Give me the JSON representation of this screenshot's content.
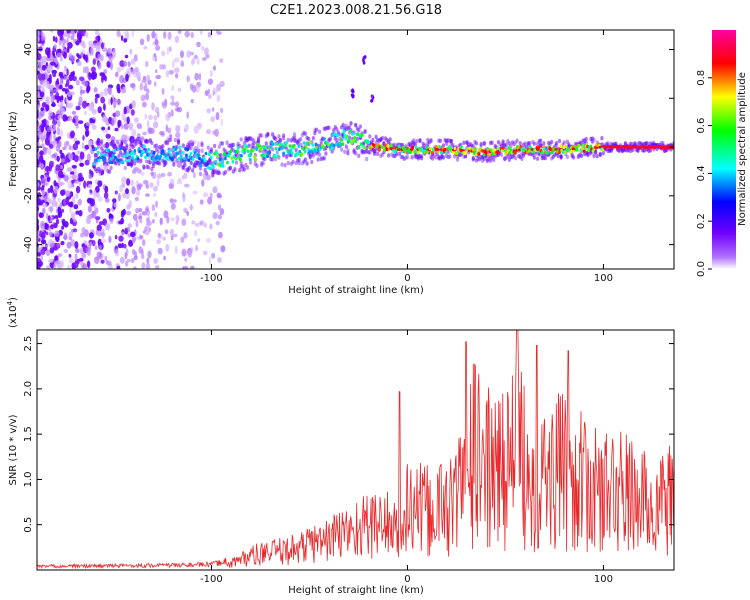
{
  "title": "C2E1.2023.008.21.56.G18",
  "chart_data": [
    {
      "type": "heatmap",
      "xlabel": "Height of straight line (km)",
      "ylabel": "Frequency (Hz)",
      "xlim": [
        -189,
        136
      ],
      "ylim": [
        -50,
        48
      ],
      "xticks": [
        -100,
        0,
        100
      ],
      "xtick_labels": [
        "-100",
        "0",
        "100"
      ],
      "yticks": [
        -40,
        -20,
        0,
        20,
        40
      ],
      "ytick_labels": [
        "-40",
        "-20",
        "0",
        "20",
        "40"
      ],
      "grid": false,
      "colorbar": {
        "label": "Normalized spectral amplitude",
        "range": [
          0,
          1
        ],
        "ticks": [
          0.0,
          0.2,
          0.4,
          0.6,
          0.8
        ],
        "tick_labels": [
          "0.0",
          "0.2",
          "0.4",
          "0.6",
          "0.8"
        ],
        "colormap": [
          "#ffffff",
          "#7000ff",
          "#0000ff",
          "#00ffff",
          "#00ff00",
          "#ffff00",
          "#ff0000",
          "#ff00a0"
        ]
      },
      "signal_track": [
        {
          "x": -158,
          "f": -4
        },
        {
          "x": -140,
          "f": -3
        },
        {
          "x": -120,
          "f": -2
        },
        {
          "x": -100,
          "f": -6
        },
        {
          "x": -85,
          "f": -3
        },
        {
          "x": -70,
          "f": -1
        },
        {
          "x": -55,
          "f": -1
        },
        {
          "x": -40,
          "f": 2
        },
        {
          "x": -30,
          "f": 4
        },
        {
          "x": -20,
          "f": 1
        },
        {
          "x": -5,
          "f": -1
        },
        {
          "x": 20,
          "f": -1
        },
        {
          "x": 40,
          "f": -2
        },
        {
          "x": 60,
          "f": -1
        },
        {
          "x": 80,
          "f": -1
        },
        {
          "x": 100,
          "f": 0
        },
        {
          "x": 136,
          "f": 0
        }
      ]
    },
    {
      "type": "line",
      "xlabel": "Height of straight line (km)",
      "ylabel": "SNR (10 * v/v)",
      "y_multiplier": "(x10",
      "y_multiplier_exp": "4",
      "y_multiplier_close": ")",
      "xlim": [
        -189,
        136
      ],
      "ylim": [
        0,
        2.65
      ],
      "xticks": [
        -100,
        0,
        100
      ],
      "xtick_labels": [
        "-100",
        "0",
        "100"
      ],
      "yticks": [
        0.5,
        1.0,
        1.5,
        2.0,
        2.5
      ],
      "ytick_labels": [
        "0.5",
        "1.0",
        "1.5",
        "2.0",
        "2.5"
      ],
      "grid": false,
      "color": "#e8282a",
      "envelope": [
        {
          "x": -189,
          "y": 0.04
        },
        {
          "x": -130,
          "y": 0.05
        },
        {
          "x": -100,
          "y": 0.06
        },
        {
          "x": -92,
          "y": 0.1
        },
        {
          "x": -80,
          "y": 0.25
        },
        {
          "x": -60,
          "y": 0.35
        },
        {
          "x": -40,
          "y": 0.55
        },
        {
          "x": -25,
          "y": 0.75
        },
        {
          "x": -10,
          "y": 0.85
        },
        {
          "x": -3,
          "y": 0.5
        },
        {
          "x": 0,
          "y": 1.2
        },
        {
          "x": 10,
          "y": 1.1
        },
        {
          "x": 25,
          "y": 1.3
        },
        {
          "x": 32,
          "y": 2.3
        },
        {
          "x": 45,
          "y": 1.8
        },
        {
          "x": 56,
          "y": 2.4
        },
        {
          "x": 65,
          "y": 1.7
        },
        {
          "x": 80,
          "y": 1.9
        },
        {
          "x": 95,
          "y": 1.5
        },
        {
          "x": 110,
          "y": 1.5
        },
        {
          "x": 125,
          "y": 1.2
        },
        {
          "x": 136,
          "y": 1.35
        }
      ],
      "peaks": [
        {
          "x": -4,
          "y": 1.97
        },
        {
          "x": 30,
          "y": 2.52
        },
        {
          "x": 56,
          "y": 2.65
        },
        {
          "x": 66,
          "y": 2.48
        },
        {
          "x": 82,
          "y": 2.42
        }
      ]
    }
  ]
}
